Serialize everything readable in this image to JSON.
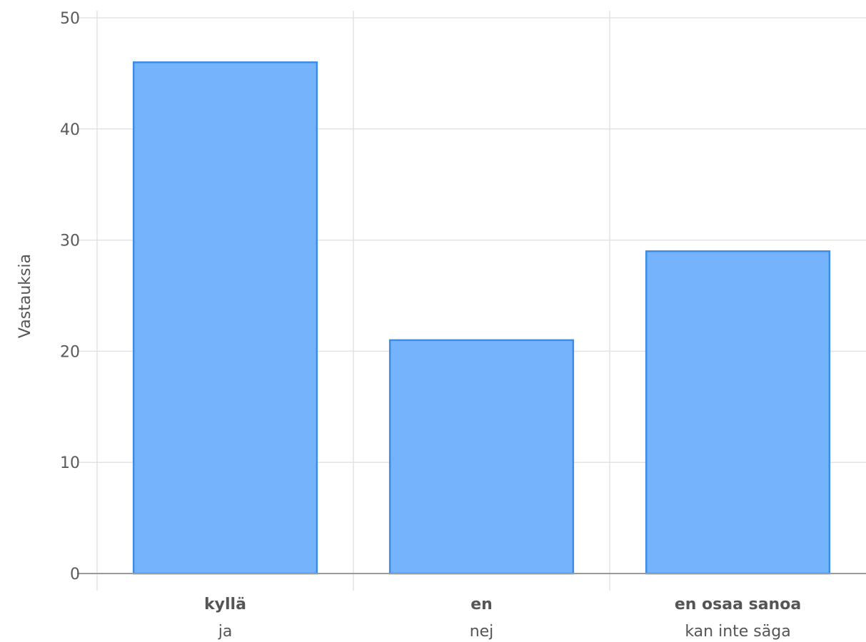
{
  "chart_data": {
    "type": "bar",
    "categories": [
      "kyllä",
      "en",
      "en osaa sanoa"
    ],
    "category_sublabels": [
      "ja",
      "nej",
      "kan inte säga"
    ],
    "values": [
      46,
      21,
      29
    ],
    "xlabel": "",
    "ylabel": "Vastauksia",
    "ylim": [
      0,
      50
    ],
    "yticks": [
      0,
      10,
      20,
      30,
      40,
      50
    ],
    "grid": true,
    "legend": "none",
    "bar_fill": "#75b3fd",
    "bar_stroke": "#3d8de8",
    "grid_color": "#e3e3e3",
    "axis_color": "#9a9a9a"
  }
}
